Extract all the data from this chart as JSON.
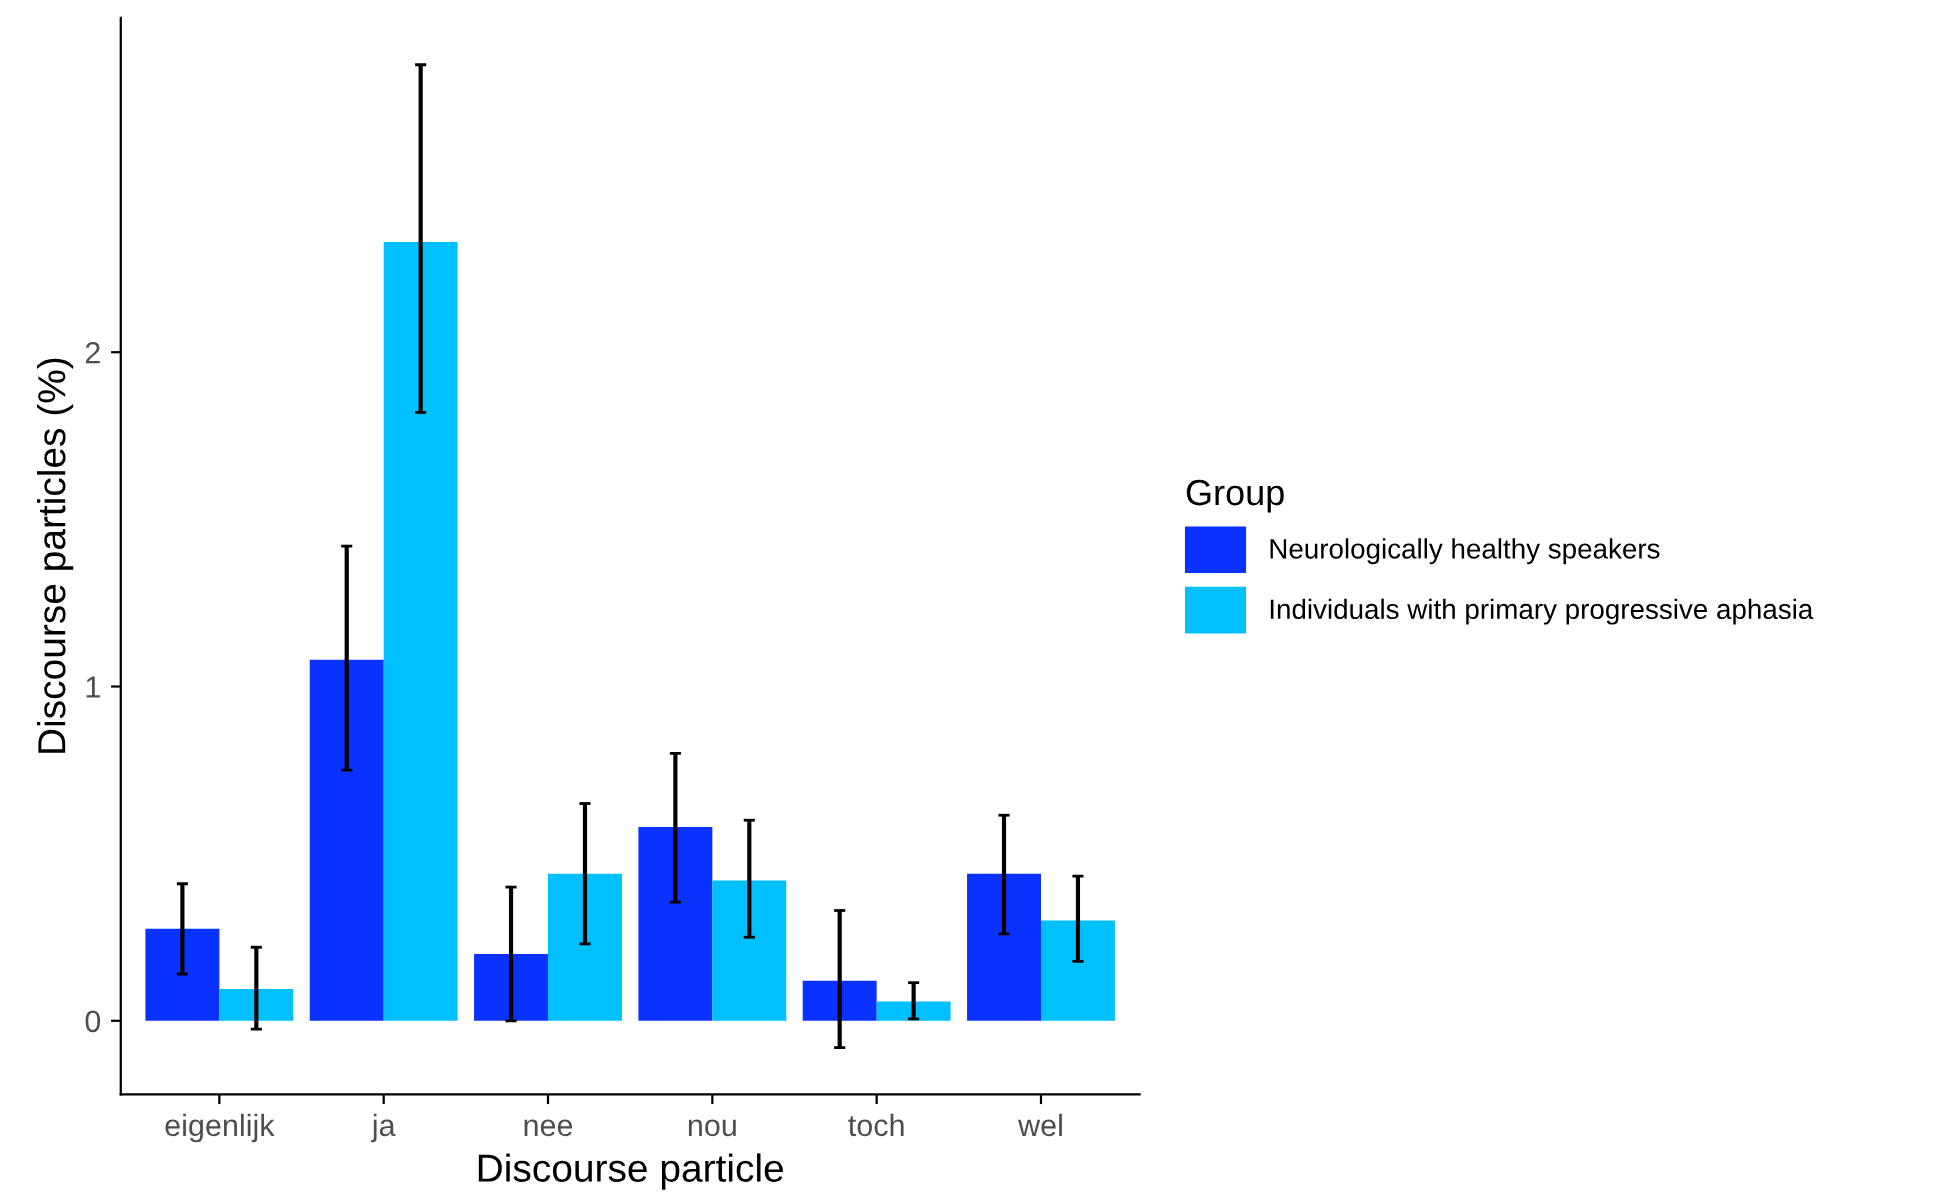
{
  "chart_data": {
    "type": "bar",
    "xlabel": "Discourse particle",
    "ylabel": "Discourse particles (%)",
    "legend_title": "Group",
    "categories": [
      "eigenlijk",
      "ja",
      "nee",
      "nou",
      "toch",
      "wel"
    ],
    "series": [
      {
        "name": "Neurologically healthy speakers",
        "color": "#0a32ff",
        "values": [
          0.275,
          1.08,
          0.2,
          0.58,
          0.12,
          0.44
        ],
        "errors": [
          [
            0.14,
            0.41
          ],
          [
            0.75,
            1.42
          ],
          [
            0.0,
            0.4
          ],
          [
            0.355,
            0.8
          ],
          [
            -0.08,
            0.33
          ],
          [
            0.26,
            0.615
          ]
        ]
      },
      {
        "name": "Individuals with primary progressive aphasia",
        "color": "#00c0ff",
        "values": [
          0.095,
          2.33,
          0.44,
          0.42,
          0.058,
          0.3
        ],
        "errors": [
          [
            -0.025,
            0.22
          ],
          [
            1.82,
            2.86
          ],
          [
            0.23,
            0.65
          ],
          [
            0.25,
            0.6
          ],
          [
            0.006,
            0.114
          ],
          [
            0.178,
            0.433
          ]
        ]
      }
    ],
    "ylim": [
      -0.22,
      3.0
    ],
    "yticks": [
      0,
      1,
      2
    ],
    "grid": false,
    "legend": "right"
  }
}
